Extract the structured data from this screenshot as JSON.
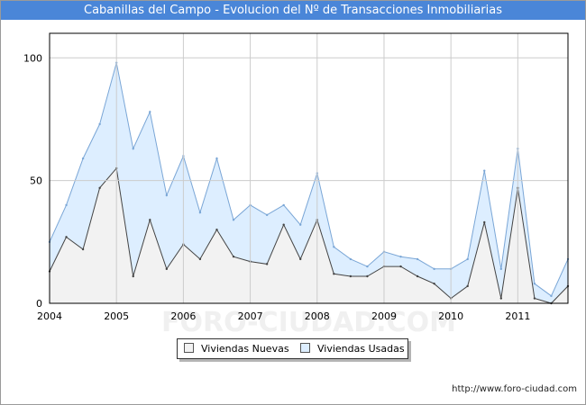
{
  "header": {
    "title": "Cabanillas del Campo - Evolucion del Nº de Transacciones Inmobiliarias"
  },
  "footer": {
    "url": "http://www.foro-ciudad.com"
  },
  "watermark": "FORO-CIUDAD.COM",
  "colors": {
    "title_bg": "#4a86d8",
    "nuevas_fill": "#f2f2f2",
    "nuevas_line": "#444444",
    "usadas_fill": "#ddeeff",
    "usadas_line": "#7aa6d6",
    "grid": "#cccccc"
  },
  "chart_data": {
    "type": "area",
    "title": "Cabanillas del Campo - Evolucion del Nº de Transacciones Inmobiliarias",
    "xlabel": "",
    "ylabel": "",
    "x": [
      2004,
      2004.25,
      2004.5,
      2004.75,
      2005,
      2005.25,
      2005.5,
      2005.75,
      2006,
      2006.25,
      2006.5,
      2006.75,
      2007,
      2007.25,
      2007.5,
      2007.75,
      2008,
      2008.25,
      2008.5,
      2008.75,
      2009,
      2009.25,
      2009.5,
      2009.75,
      2010,
      2010.25,
      2010.5,
      2010.75,
      2011,
      2011.25,
      2011.5,
      2011.75
    ],
    "xlim": [
      2004,
      2011.75
    ],
    "ylim": [
      0,
      110
    ],
    "x_ticks": [
      "2004",
      "2005",
      "2006",
      "2007",
      "2008",
      "2009",
      "2010",
      "2011"
    ],
    "y_ticks": [
      "0",
      "50",
      "100"
    ],
    "grid": true,
    "legend_position": "bottom-center",
    "series": [
      {
        "name": "Viviendas Nuevas",
        "values": [
          13,
          27,
          22,
          47,
          55,
          11,
          34,
          14,
          24,
          18,
          30,
          19,
          17,
          16,
          32,
          18,
          34,
          12,
          11,
          11,
          15,
          15,
          11,
          8,
          2,
          7,
          33,
          2,
          47,
          2,
          0,
          7
        ]
      },
      {
        "name": "Viviendas Usadas",
        "values": [
          12,
          13,
          37,
          26,
          43,
          52,
          44,
          30,
          36,
          19,
          29,
          15,
          23,
          20,
          8,
          14,
          19,
          11,
          7,
          4,
          6,
          4,
          7,
          6,
          12,
          11,
          21,
          12,
          16,
          6,
          3,
          11
        ]
      }
    ]
  }
}
